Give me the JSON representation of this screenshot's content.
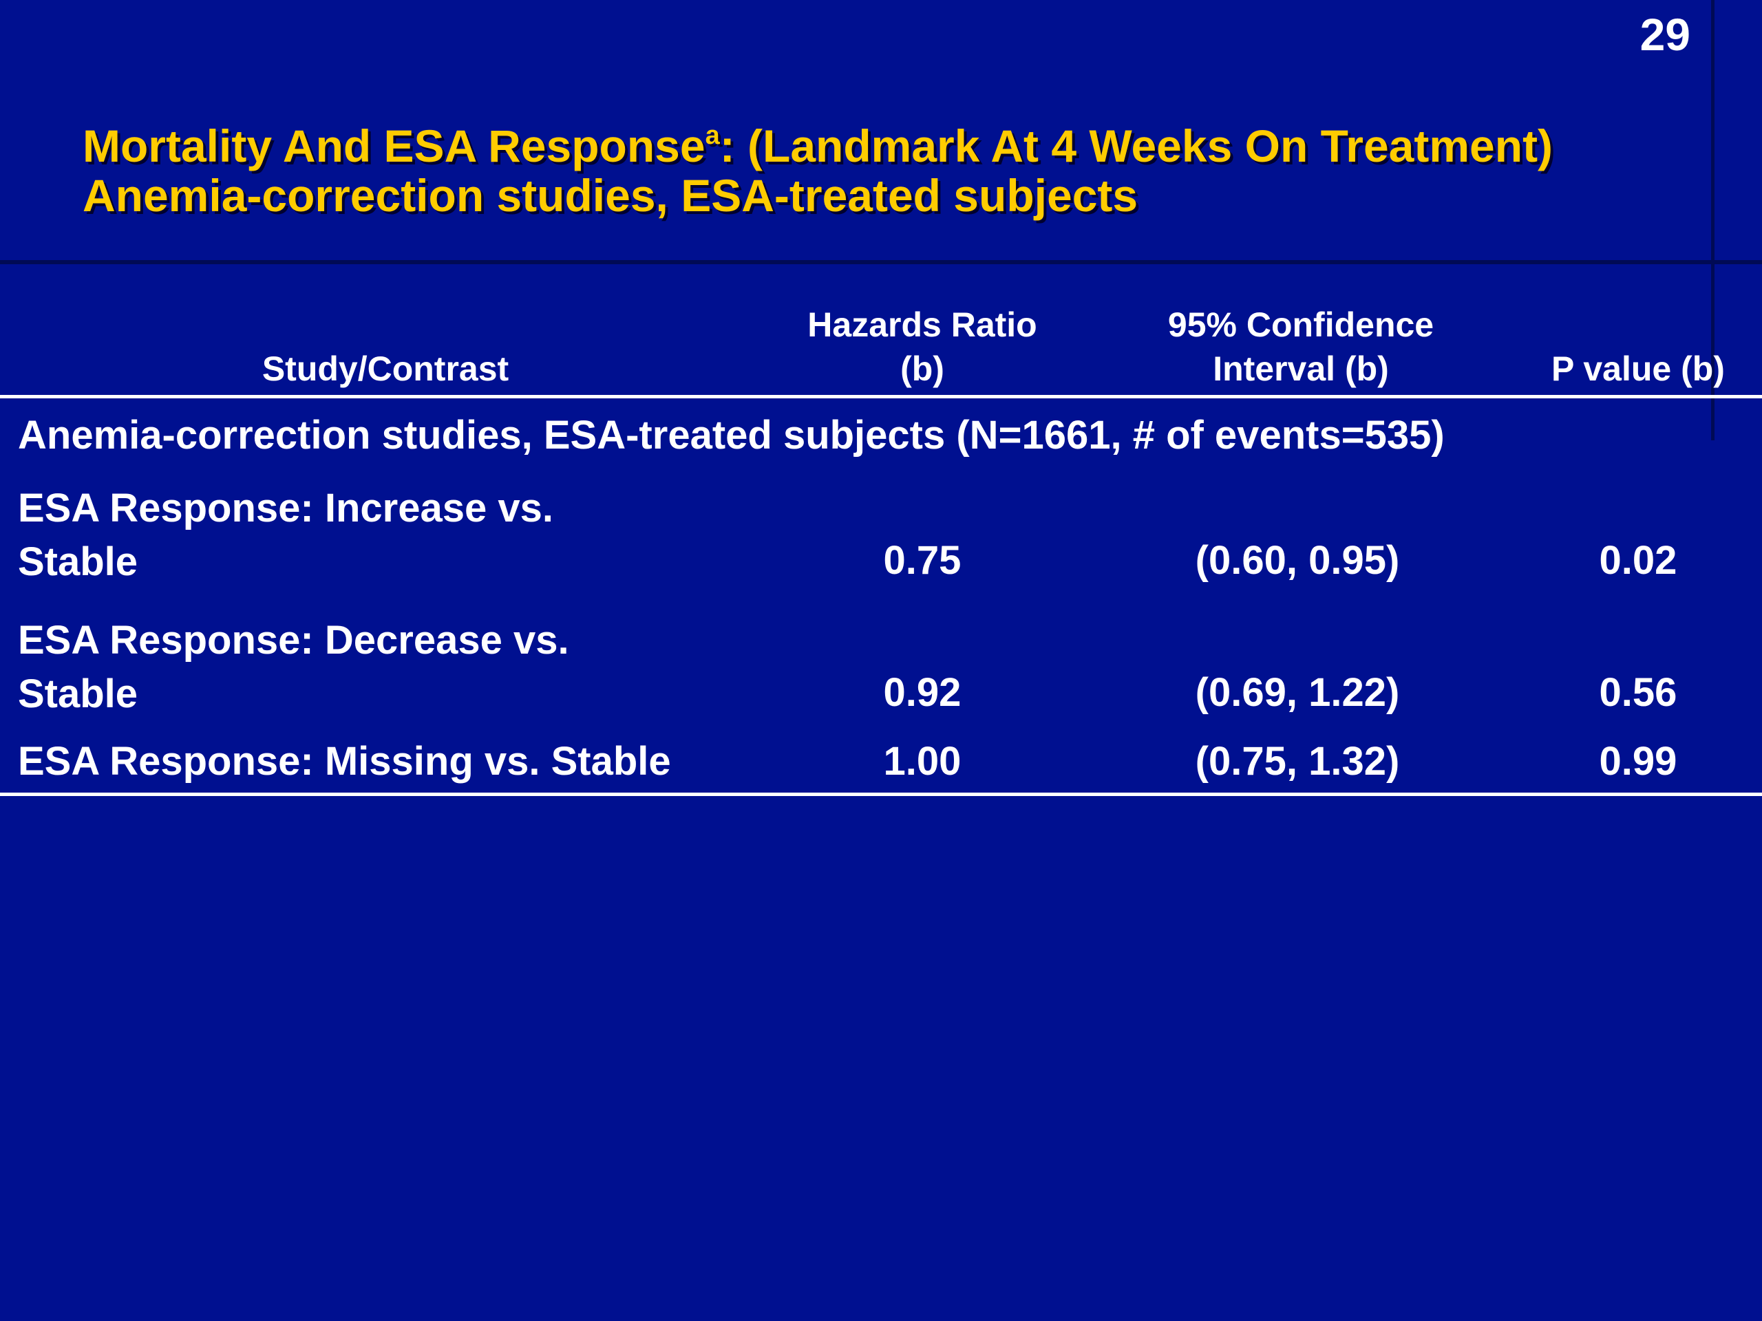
{
  "slide": {
    "page_number": "29",
    "title_line1_pre": "Mortality And ESA Response",
    "title_line1_sup": "a",
    "title_line1_post": ": (Landmark At 4 Weeks On Treatment)",
    "title_line2": "Anemia-correction studies, ESA-treated subjects"
  },
  "table": {
    "headers": {
      "study": "Study/Contrast",
      "hr_line1": "Hazards Ratio",
      "hr_line2": "(b)",
      "ci_line1": "95% Confidence",
      "ci_line2": "Interval (b)",
      "p": "P value (b)"
    },
    "group_label": "Anemia-correction studies, ESA-treated subjects (N=1661, # of events=535)",
    "rows": [
      {
        "contrast": "ESA Response: Increase vs.\nStable",
        "hr": "0.75",
        "ci": "(0.60, 0.95)",
        "p": "0.02"
      },
      {
        "contrast": "ESA Response: Decrease vs.\nStable",
        "hr": "0.92",
        "ci": "(0.69, 1.22)",
        "p": "0.56"
      },
      {
        "contrast": "ESA Response: Missing vs. Stable",
        "hr": "1.00",
        "ci": "(0.75, 1.32)",
        "p": "0.99"
      }
    ]
  },
  "colors": {
    "background": "#001090",
    "title": "#ffcc00",
    "text": "#ffffff"
  }
}
